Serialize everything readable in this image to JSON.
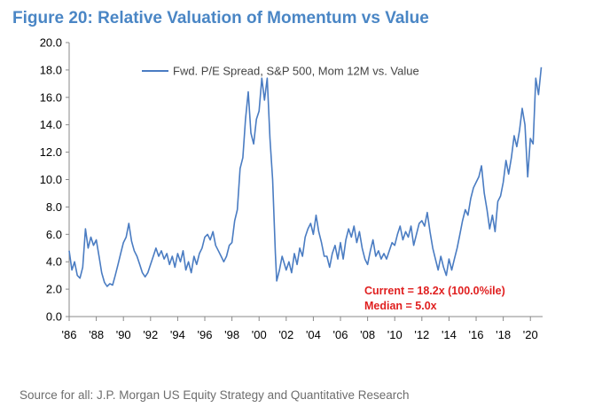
{
  "figure": {
    "title": "Figure 20: Relative Valuation of Momentum vs Value",
    "source": "Source for all: J.P. Morgan US Equity Strategy and Quantitative Research"
  },
  "chart_data": {
    "type": "line",
    "title": "Figure 20: Relative Valuation of Momentum vs Value",
    "xlabel": "",
    "ylabel": "",
    "ylim": [
      0,
      20
    ],
    "xlim": [
      1986,
      2020.9
    ],
    "y_ticks": [
      "0.0",
      "2.0",
      "4.0",
      "6.0",
      "8.0",
      "10.0",
      "12.0",
      "14.0",
      "16.0",
      "18.0",
      "20.0"
    ],
    "x_ticks": [
      "'86",
      "'88",
      "'90",
      "'92",
      "'94",
      "'96",
      "'98",
      "'00",
      "'02",
      "'04",
      "'06",
      "'08",
      "'10",
      "'12",
      "'14",
      "'16",
      "'18",
      "'20"
    ],
    "grid": false,
    "legend_position": "top-center",
    "line_color": "#4a7cc2",
    "annotations": [
      "Current = 18.2x (100.0%ile)",
      "Median = 5.0x"
    ],
    "annotation_color": "#e02020",
    "series": [
      {
        "name": "Fwd. P/E Spread, S&P 500, Mom 12M vs. Value",
        "points": [
          [
            1986.0,
            4.8
          ],
          [
            1986.2,
            3.4
          ],
          [
            1986.4,
            4.0
          ],
          [
            1986.6,
            3.0
          ],
          [
            1986.8,
            2.8
          ],
          [
            1987.0,
            3.6
          ],
          [
            1987.2,
            6.4
          ],
          [
            1987.4,
            5.0
          ],
          [
            1987.6,
            5.8
          ],
          [
            1987.8,
            5.2
          ],
          [
            1988.0,
            5.6
          ],
          [
            1988.2,
            4.4
          ],
          [
            1988.4,
            3.2
          ],
          [
            1988.6,
            2.5
          ],
          [
            1988.8,
            2.2
          ],
          [
            1989.0,
            2.4
          ],
          [
            1989.2,
            2.3
          ],
          [
            1989.4,
            3.0
          ],
          [
            1989.6,
            3.8
          ],
          [
            1989.8,
            4.6
          ],
          [
            1990.0,
            5.4
          ],
          [
            1990.2,
            5.8
          ],
          [
            1990.4,
            6.8
          ],
          [
            1990.6,
            5.5
          ],
          [
            1990.8,
            4.8
          ],
          [
            1991.0,
            4.4
          ],
          [
            1991.2,
            3.8
          ],
          [
            1991.4,
            3.2
          ],
          [
            1991.6,
            2.9
          ],
          [
            1991.8,
            3.2
          ],
          [
            1992.0,
            3.8
          ],
          [
            1992.2,
            4.4
          ],
          [
            1992.4,
            5.0
          ],
          [
            1992.6,
            4.4
          ],
          [
            1992.8,
            4.8
          ],
          [
            1993.0,
            4.2
          ],
          [
            1993.2,
            4.6
          ],
          [
            1993.4,
            3.8
          ],
          [
            1993.6,
            4.4
          ],
          [
            1993.8,
            3.6
          ],
          [
            1994.0,
            4.6
          ],
          [
            1994.2,
            4.0
          ],
          [
            1994.4,
            4.8
          ],
          [
            1994.6,
            3.4
          ],
          [
            1994.8,
            4.0
          ],
          [
            1995.0,
            3.2
          ],
          [
            1995.2,
            4.4
          ],
          [
            1995.4,
            3.8
          ],
          [
            1995.6,
            4.6
          ],
          [
            1995.8,
            5.0
          ],
          [
            1996.0,
            5.8
          ],
          [
            1996.2,
            6.0
          ],
          [
            1996.4,
            5.6
          ],
          [
            1996.6,
            6.2
          ],
          [
            1996.8,
            5.2
          ],
          [
            1997.0,
            4.8
          ],
          [
            1997.2,
            4.4
          ],
          [
            1997.4,
            4.0
          ],
          [
            1997.6,
            4.4
          ],
          [
            1997.8,
            5.2
          ],
          [
            1998.0,
            5.4
          ],
          [
            1998.2,
            7.0
          ],
          [
            1998.4,
            7.8
          ],
          [
            1998.6,
            10.8
          ],
          [
            1998.8,
            11.6
          ],
          [
            1999.0,
            14.4
          ],
          [
            1999.2,
            16.4
          ],
          [
            1999.4,
            13.4
          ],
          [
            1999.6,
            12.6
          ],
          [
            1999.8,
            14.4
          ],
          [
            2000.0,
            15.0
          ],
          [
            2000.2,
            17.4
          ],
          [
            2000.4,
            15.8
          ],
          [
            2000.6,
            17.4
          ],
          [
            2000.8,
            13.0
          ],
          [
            2001.0,
            10.0
          ],
          [
            2001.2,
            4.6
          ],
          [
            2001.3,
            2.6
          ],
          [
            2001.5,
            3.4
          ],
          [
            2001.7,
            4.4
          ],
          [
            2002.0,
            3.4
          ],
          [
            2002.2,
            4.0
          ],
          [
            2002.4,
            3.2
          ],
          [
            2002.6,
            4.6
          ],
          [
            2002.8,
            3.8
          ],
          [
            2003.0,
            5.0
          ],
          [
            2003.2,
            4.4
          ],
          [
            2003.4,
            5.8
          ],
          [
            2003.6,
            6.4
          ],
          [
            2003.8,
            6.8
          ],
          [
            2004.0,
            6.0
          ],
          [
            2004.2,
            7.4
          ],
          [
            2004.4,
            6.2
          ],
          [
            2004.6,
            5.4
          ],
          [
            2004.8,
            4.4
          ],
          [
            2005.0,
            4.4
          ],
          [
            2005.2,
            3.6
          ],
          [
            2005.4,
            4.6
          ],
          [
            2005.6,
            5.2
          ],
          [
            2005.8,
            4.2
          ],
          [
            2006.0,
            5.4
          ],
          [
            2006.2,
            4.2
          ],
          [
            2006.4,
            5.6
          ],
          [
            2006.6,
            6.4
          ],
          [
            2006.8,
            5.8
          ],
          [
            2007.0,
            6.6
          ],
          [
            2007.2,
            5.4
          ],
          [
            2007.4,
            6.2
          ],
          [
            2007.6,
            5.0
          ],
          [
            2007.8,
            4.2
          ],
          [
            2008.0,
            3.8
          ],
          [
            2008.2,
            4.8
          ],
          [
            2008.4,
            5.6
          ],
          [
            2008.6,
            4.4
          ],
          [
            2008.8,
            4.8
          ],
          [
            2009.0,
            4.2
          ],
          [
            2009.2,
            4.6
          ],
          [
            2009.4,
            4.2
          ],
          [
            2009.6,
            4.8
          ],
          [
            2009.8,
            5.4
          ],
          [
            2010.0,
            5.2
          ],
          [
            2010.2,
            6.0
          ],
          [
            2010.4,
            6.6
          ],
          [
            2010.6,
            5.6
          ],
          [
            2010.8,
            6.2
          ],
          [
            2011.0,
            5.8
          ],
          [
            2011.2,
            6.6
          ],
          [
            2011.4,
            5.2
          ],
          [
            2011.6,
            6.0
          ],
          [
            2011.8,
            6.8
          ],
          [
            2012.0,
            7.0
          ],
          [
            2012.2,
            6.6
          ],
          [
            2012.4,
            7.6
          ],
          [
            2012.6,
            6.2
          ],
          [
            2012.8,
            5.0
          ],
          [
            2013.0,
            4.2
          ],
          [
            2013.2,
            3.4
          ],
          [
            2013.4,
            4.4
          ],
          [
            2013.6,
            3.6
          ],
          [
            2013.8,
            3.0
          ],
          [
            2014.0,
            4.2
          ],
          [
            2014.2,
            3.4
          ],
          [
            2014.4,
            4.2
          ],
          [
            2014.6,
            5.0
          ],
          [
            2014.8,
            6.0
          ],
          [
            2015.0,
            7.0
          ],
          [
            2015.2,
            7.8
          ],
          [
            2015.4,
            7.4
          ],
          [
            2015.6,
            8.6
          ],
          [
            2015.8,
            9.4
          ],
          [
            2016.0,
            9.8
          ],
          [
            2016.2,
            10.2
          ],
          [
            2016.4,
            11.0
          ],
          [
            2016.6,
            9.0
          ],
          [
            2016.8,
            7.8
          ],
          [
            2017.0,
            6.4
          ],
          [
            2017.2,
            7.4
          ],
          [
            2017.4,
            6.2
          ],
          [
            2017.6,
            8.4
          ],
          [
            2017.8,
            8.8
          ],
          [
            2018.0,
            9.8
          ],
          [
            2018.2,
            11.4
          ],
          [
            2018.4,
            10.4
          ],
          [
            2018.6,
            11.6
          ],
          [
            2018.8,
            13.2
          ],
          [
            2019.0,
            12.4
          ],
          [
            2019.2,
            13.6
          ],
          [
            2019.4,
            15.2
          ],
          [
            2019.6,
            14.0
          ],
          [
            2019.8,
            10.2
          ],
          [
            2020.0,
            13.0
          ],
          [
            2020.2,
            12.6
          ],
          [
            2020.4,
            17.4
          ],
          [
            2020.6,
            16.2
          ],
          [
            2020.8,
            18.2
          ]
        ]
      }
    ]
  }
}
